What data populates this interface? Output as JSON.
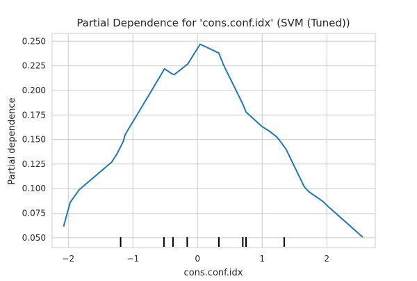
{
  "chart_data": {
    "type": "line",
    "title": "Partial Dependence for 'cons.conf.idx' (SVM (Tuned))",
    "xlabel": "cons.conf.idx",
    "ylabel": "Partial dependence",
    "xlim": [
      -2.25,
      2.75
    ],
    "ylim": [
      0.04,
      0.258
    ],
    "grid": true,
    "line_color": "#1f77b4",
    "xticks": [
      -2,
      -1,
      0,
      1,
      2
    ],
    "xtick_labels": [
      "−2",
      "−1",
      "0",
      "1",
      "2"
    ],
    "yticks": [
      0.05,
      0.075,
      0.1,
      0.125,
      0.15,
      0.175,
      0.2,
      0.225,
      0.25
    ],
    "ytick_labels": [
      "0.050",
      "0.075",
      "0.100",
      "0.125",
      "0.150",
      "0.175",
      "0.200",
      "0.225",
      "0.250"
    ],
    "series": [
      {
        "x": [
          -2.07,
          -1.97,
          -1.83,
          -1.33,
          -1.25,
          -1.15,
          -1.12,
          -0.8,
          -0.51,
          -0.4,
          -0.36,
          -0.15,
          0.04,
          0.33,
          0.4,
          0.7,
          0.75,
          1.0,
          1.1,
          1.22,
          1.26,
          1.37,
          1.65,
          1.72,
          1.94,
          2.0,
          2.55
        ],
        "y": [
          0.062,
          0.086,
          0.099,
          0.127,
          0.135,
          0.148,
          0.155,
          0.19,
          0.222,
          0.217,
          0.216,
          0.227,
          0.247,
          0.238,
          0.226,
          0.186,
          0.178,
          0.163,
          0.159,
          0.153,
          0.15,
          0.14,
          0.102,
          0.097,
          0.087,
          0.083,
          0.051
        ]
      }
    ],
    "rug": [
      -1.19,
      -0.52,
      -0.38,
      -0.16,
      0.33,
      0.7,
      0.75,
      1.34
    ]
  }
}
